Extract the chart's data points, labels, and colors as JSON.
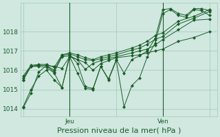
{
  "bg_color": "#d0e8e0",
  "grid_color": "#a0c8b8",
  "line_color": "#1a5c28",
  "marker_color": "#1a5c28",
  "xlabel": "Pression niveau de la mer( hPa )",
  "xlabel_fontsize": 8,
  "tick_label_fontsize": 6.5,
  "xtick_labels": [
    "",
    "Jeu",
    "",
    "Ven",
    ""
  ],
  "xtick_positions": [
    0,
    36,
    72,
    108,
    144
  ],
  "ytick_positions": [
    1014,
    1015,
    1016,
    1017,
    1018
  ],
  "ylim": [
    1013.6,
    1019.5
  ],
  "xlim": [
    -2,
    150
  ],
  "vlines": [
    36,
    108
  ],
  "series": [
    [
      0,
      1014.05,
      6,
      1014.8,
      12,
      1015.9,
      18,
      1016.25,
      24,
      1016.2,
      30,
      1016.1,
      36,
      1016.7,
      48,
      1016.4,
      54,
      1016.0,
      60,
      1016.35,
      66,
      1016.5,
      72,
      1016.65,
      84,
      1016.75,
      90,
      1016.8,
      96,
      1016.9,
      102,
      1017.0,
      108,
      1017.1,
      120,
      1017.5,
      132,
      1017.7,
      144,
      1018.0
    ],
    [
      0,
      1015.5,
      6,
      1016.2,
      12,
      1016.25,
      18,
      1016.25,
      24,
      1015.9,
      30,
      1016.7,
      36,
      1016.75,
      42,
      1016.55,
      48,
      1016.05,
      54,
      1016.35,
      60,
      1016.5,
      66,
      1016.6,
      72,
      1016.7,
      84,
      1016.9,
      90,
      1017.0,
      96,
      1017.1,
      102,
      1017.3,
      108,
      1017.6,
      120,
      1018.1,
      132,
      1018.6,
      144,
      1018.65
    ],
    [
      0,
      1015.6,
      6,
      1016.2,
      12,
      1016.25,
      18,
      1016.25,
      24,
      1016.0,
      30,
      1016.75,
      36,
      1016.85,
      42,
      1016.7,
      48,
      1016.55,
      54,
      1016.5,
      60,
      1016.6,
      66,
      1016.7,
      72,
      1016.8,
      84,
      1017.05,
      90,
      1017.15,
      96,
      1017.35,
      102,
      1017.6,
      108,
      1017.75,
      120,
      1018.4,
      132,
      1018.7,
      144,
      1019.05
    ],
    [
      0,
      1015.7,
      6,
      1016.25,
      12,
      1016.3,
      18,
      1016.3,
      24,
      1016.15,
      30,
      1016.8,
      36,
      1016.9,
      42,
      1016.8,
      48,
      1016.65,
      54,
      1016.55,
      60,
      1016.7,
      66,
      1016.8,
      72,
      1016.9,
      84,
      1017.15,
      90,
      1017.3,
      96,
      1017.5,
      102,
      1017.8,
      108,
      1017.95,
      120,
      1018.55,
      132,
      1018.8,
      144,
      1019.15
    ],
    [
      0,
      1014.1,
      6,
      1015.0,
      12,
      1015.7,
      18,
      1016.0,
      24,
      1015.5,
      30,
      1015.1,
      36,
      1016.8,
      42,
      1016.35,
      48,
      1015.15,
      54,
      1015.05,
      60,
      1016.2,
      66,
      1015.55,
      72,
      1016.55,
      78,
      1015.85,
      84,
      1016.55,
      90,
      1016.75,
      96,
      1017.0,
      102,
      1017.65,
      108,
      1019.15,
      114,
      1019.2,
      120,
      1018.95,
      126,
      1018.85,
      132,
      1019.2,
      138,
      1019.2,
      144,
      1019.1
    ],
    [
      0,
      1015.5,
      6,
      1016.2,
      12,
      1016.2,
      18,
      1016.15,
      24,
      1015.85,
      30,
      1015.1,
      36,
      1016.7,
      42,
      1015.85,
      48,
      1015.05,
      54,
      1015.0,
      60,
      1016.2,
      66,
      1015.5,
      72,
      1016.5,
      78,
      1014.1,
      84,
      1015.2,
      90,
      1015.6,
      96,
      1016.7,
      102,
      1017.4,
      108,
      1018.95,
      114,
      1019.15,
      120,
      1018.85,
      126,
      1018.75,
      132,
      1019.15,
      138,
      1019.1,
      144,
      1018.85
    ]
  ]
}
